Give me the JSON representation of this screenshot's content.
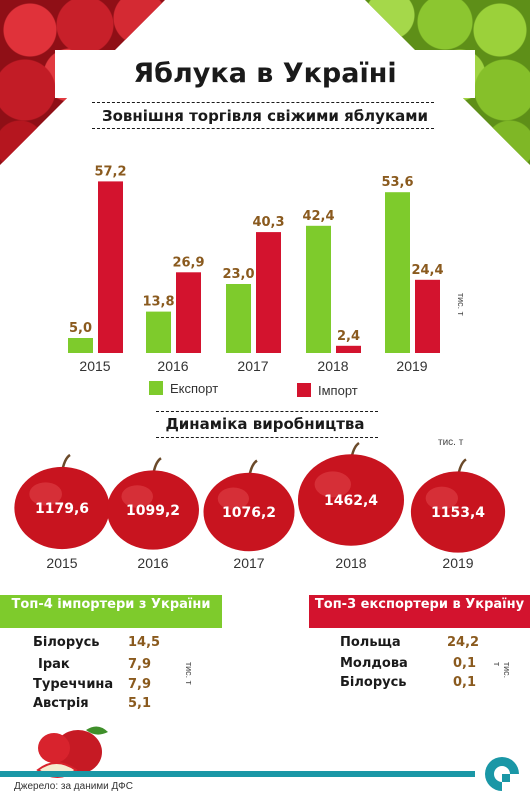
{
  "title": "Яблука в Україні",
  "trade": {
    "title": "Зовнішня торгівля свіжими яблуками",
    "units": "тис. т",
    "legend": {
      "export": "Експорт",
      "import": "Імпорт"
    },
    "colors": {
      "export": "#7ecb2c",
      "import": "#d3132e",
      "value": "#8a5a1e"
    }
  },
  "production": {
    "title": "Динаміка виробництва",
    "units": "тис. т"
  },
  "chart_data": [
    {
      "type": "bar",
      "title": "Зовнішня торгівля свіжими яблуками",
      "categories": [
        "2015",
        "2016",
        "2017",
        "2018",
        "2019"
      ],
      "series": [
        {
          "name": "Експорт",
          "values": [
            5.0,
            13.8,
            23.0,
            42.4,
            53.6
          ],
          "labels": [
            "5,0",
            "13,8",
            "23,0",
            "42,4",
            "53,6"
          ]
        },
        {
          "name": "Імпорт",
          "values": [
            57.2,
            26.9,
            40.3,
            2.4,
            24.4
          ],
          "labels": [
            "57,2",
            "26,9",
            "40,3",
            "2,4",
            "24,4"
          ]
        }
      ],
      "ylabel": "тис. т",
      "ylim": [
        0,
        60
      ],
      "grid": false,
      "legend": "bottom"
    },
    {
      "type": "bubble",
      "title": "Динаміка виробництва",
      "categories": [
        "2015",
        "2016",
        "2017",
        "2018",
        "2019"
      ],
      "values": [
        1179.6,
        1099.2,
        1076.2,
        1462.4,
        1153.4
      ],
      "labels": [
        "1179,6",
        "1099,2",
        "1076,2",
        "1462,4",
        "1153,4"
      ],
      "ylabel": "тис. т"
    }
  ],
  "importers": {
    "title": "Топ-4 імпортери з України",
    "units": "тис. т",
    "rows": [
      {
        "name": "Білорусь",
        "value": "14,5"
      },
      {
        "name": "Ірак",
        "value": "7,9"
      },
      {
        "name": "Туреччина",
        "value": "7,9"
      },
      {
        "name": "Австрія",
        "value": "5,1"
      }
    ]
  },
  "exporters": {
    "title": "Топ-3 експортери в Україну",
    "units": "тис. т",
    "rows": [
      {
        "name": "Польща",
        "value": "24,2"
      },
      {
        "name": "Молдова",
        "value": "0,1"
      },
      {
        "name": "Білорусь",
        "value": "0,1"
      }
    ]
  },
  "source": "Джерело: за даними ДФС"
}
